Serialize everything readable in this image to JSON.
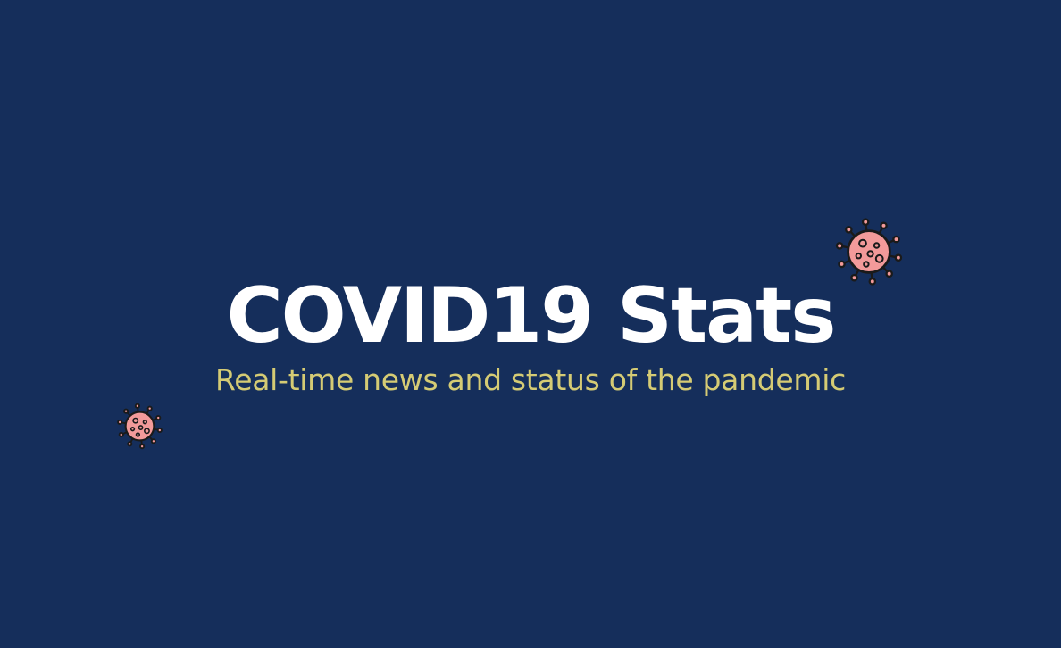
{
  "hero": {
    "title": "COVID19 Stats",
    "subtitle": "Real-time news and status of the pandemic"
  },
  "decorations": [
    {
      "icon": "virus-icon"
    },
    {
      "icon": "virus-icon"
    }
  ],
  "colors": {
    "background": "#152e5b",
    "title": "#ffffff",
    "subtitle": "#d5cb74",
    "virus_fill": "#f39a9a",
    "virus_stroke": "#1a1a1a"
  }
}
